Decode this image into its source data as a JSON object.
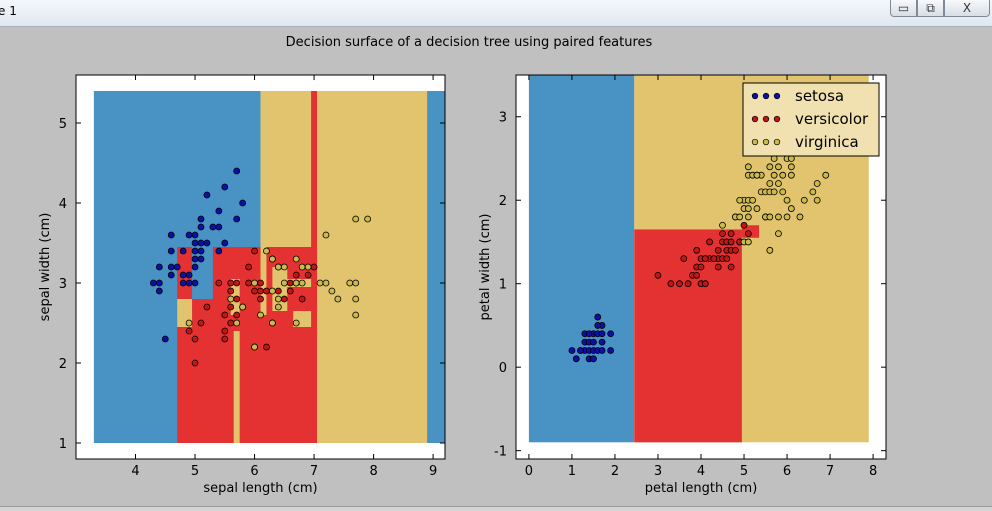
{
  "window": {
    "title": "e 1",
    "min_glyph": "▭",
    "max_glyph": "⧉",
    "close_glyph": "X"
  },
  "figure_title": "Decision surface of a decision tree using paired features",
  "colors": {
    "setosa_region": "#4892c4",
    "versicolor_region": "#e43232",
    "virginica_region": "#e3c46e",
    "setosa_point": "#0d10a8",
    "versicolor_point": "#c11616",
    "virginica_point": "#c9ba4a",
    "background": "#c0c0c0"
  },
  "chart_data": [
    {
      "type": "scatter",
      "title": "",
      "xlabel": "sepal length (cm)",
      "ylabel": "sepal width (cm)",
      "xlim": [
        3.0,
        9.2
      ],
      "ylim": [
        0.8,
        5.6
      ],
      "xticks": [
        4,
        5,
        6,
        7,
        8,
        9
      ],
      "yticks": [
        1,
        2,
        3,
        4,
        5
      ],
      "grid": false,
      "legend": null,
      "regions": [
        {
          "class": "setosa",
          "x0": 3.3,
          "x1": 9.9,
          "y0": 1.0,
          "y1": 5.4
        },
        {
          "class": "virginica",
          "x0": 6.1,
          "x1": 8.9,
          "y0": 1.0,
          "y1": 5.4
        },
        {
          "class": "versicolor",
          "x0": 4.7,
          "x1": 7.05,
          "y0": 1.0,
          "y1": 3.45
        },
        {
          "class": "virginica",
          "x0": 4.7,
          "x1": 4.95,
          "y0": 2.45,
          "y1": 2.8
        },
        {
          "class": "setosa",
          "x0": 4.95,
          "x1": 5.3,
          "y0": 2.8,
          "y1": 3.45
        },
        {
          "class": "virginica",
          "x0": 5.65,
          "x1": 5.75,
          "y0": 1.0,
          "y1": 2.4
        },
        {
          "class": "virginica",
          "x0": 5.6,
          "x1": 5.75,
          "y0": 2.6,
          "y1": 3.05
        },
        {
          "class": "virginica",
          "x0": 6.1,
          "x1": 6.2,
          "y0": 2.6,
          "y1": 3.45
        },
        {
          "class": "virginica",
          "x0": 6.3,
          "x1": 6.55,
          "y0": 2.65,
          "y1": 3.2
        },
        {
          "class": "virginica",
          "x0": 6.55,
          "x1": 6.95,
          "y0": 2.95,
          "y1": 3.05
        },
        {
          "class": "virginica",
          "x0": 6.65,
          "x1": 6.95,
          "y0": 2.45,
          "y1": 2.65
        },
        {
          "class": "versicolor",
          "x0": 6.95,
          "x1": 7.05,
          "y0": 3.45,
          "y1": 5.4
        }
      ],
      "series": [
        {
          "name": "setosa",
          "points": [
            [
              4.3,
              3.0
            ],
            [
              4.4,
              2.9
            ],
            [
              4.4,
              3.0
            ],
            [
              4.4,
              3.2
            ],
            [
              4.5,
              2.3
            ],
            [
              4.6,
              3.1
            ],
            [
              4.6,
              3.4
            ],
            [
              4.6,
              3.6
            ],
            [
              4.6,
              3.2
            ],
            [
              4.7,
              3.2
            ],
            [
              4.8,
              3.0
            ],
            [
              4.8,
              3.4
            ],
            [
              4.8,
              3.1
            ],
            [
              4.9,
              3.0
            ],
            [
              4.9,
              3.1
            ],
            [
              4.9,
              3.6
            ],
            [
              5.0,
              3.6
            ],
            [
              5.0,
              3.4
            ],
            [
              5.0,
              3.0
            ],
            [
              5.0,
              3.3
            ],
            [
              5.0,
              3.5
            ],
            [
              5.0,
              3.2
            ],
            [
              5.1,
              3.5
            ],
            [
              5.1,
              3.8
            ],
            [
              5.1,
              3.7
            ],
            [
              5.1,
              3.3
            ],
            [
              5.1,
              3.4
            ],
            [
              5.2,
              3.5
            ],
            [
              5.2,
              4.1
            ],
            [
              5.3,
              3.7
            ],
            [
              5.4,
              3.9
            ],
            [
              5.4,
              3.7
            ],
            [
              5.4,
              3.4
            ],
            [
              5.5,
              4.2
            ],
            [
              5.5,
              3.5
            ],
            [
              5.7,
              4.4
            ],
            [
              5.7,
              3.8
            ],
            [
              5.8,
              4.0
            ]
          ]
        },
        {
          "name": "versicolor",
          "points": [
            [
              4.9,
              2.4
            ],
            [
              5.0,
              2.0
            ],
            [
              5.0,
              2.3
            ],
            [
              5.1,
              2.5
            ],
            [
              5.2,
              2.7
            ],
            [
              5.4,
              3.0
            ],
            [
              5.5,
              2.3
            ],
            [
              5.5,
              2.4
            ],
            [
              5.5,
              2.6
            ],
            [
              5.6,
              2.9
            ],
            [
              5.6,
              3.0
            ],
            [
              5.6,
              2.5
            ],
            [
              5.6,
              2.7
            ],
            [
              5.7,
              2.8
            ],
            [
              5.7,
              2.6
            ],
            [
              5.7,
              3.0
            ],
            [
              5.8,
              2.7
            ],
            [
              5.9,
              3.0
            ],
            [
              5.9,
              3.2
            ],
            [
              6.0,
              2.2
            ],
            [
              6.0,
              2.9
            ],
            [
              6.0,
              3.4
            ],
            [
              6.1,
              2.9
            ],
            [
              6.1,
              2.8
            ],
            [
              6.1,
              3.0
            ],
            [
              6.2,
              2.2
            ],
            [
              6.2,
              2.9
            ],
            [
              6.3,
              3.3
            ],
            [
              6.3,
              2.5
            ],
            [
              6.4,
              3.2
            ],
            [
              6.4,
              2.9
            ],
            [
              6.5,
              2.8
            ],
            [
              6.6,
              2.9
            ],
            [
              6.6,
              3.0
            ],
            [
              6.7,
              3.1
            ],
            [
              6.7,
              3.0
            ],
            [
              6.8,
              2.8
            ],
            [
              6.9,
              3.1
            ],
            [
              7.0,
              3.2
            ]
          ]
        },
        {
          "name": "virginica",
          "points": [
            [
              4.9,
              2.5
            ],
            [
              5.6,
              2.8
            ],
            [
              5.7,
              2.5
            ],
            [
              5.8,
              2.7
            ],
            [
              6.0,
              2.2
            ],
            [
              6.0,
              3.0
            ],
            [
              6.1,
              2.6
            ],
            [
              6.2,
              3.4
            ],
            [
              6.3,
              3.3
            ],
            [
              6.3,
              2.9
            ],
            [
              6.3,
              2.5
            ],
            [
              6.4,
              2.7
            ],
            [
              6.4,
              3.2
            ],
            [
              6.4,
              2.8
            ],
            [
              6.5,
              3.0
            ],
            [
              6.5,
              3.2
            ],
            [
              6.7,
              2.5
            ],
            [
              6.7,
              3.3
            ],
            [
              6.7,
              3.0
            ],
            [
              6.8,
              3.0
            ],
            [
              6.8,
              3.2
            ],
            [
              6.9,
              3.2
            ],
            [
              7.1,
              3.0
            ],
            [
              7.2,
              3.6
            ],
            [
              7.2,
              3.0
            ],
            [
              7.3,
              2.9
            ],
            [
              7.4,
              2.8
            ],
            [
              7.6,
              3.0
            ],
            [
              7.7,
              3.8
            ],
            [
              7.7,
              2.6
            ],
            [
              7.7,
              2.8
            ],
            [
              7.7,
              3.0
            ],
            [
              7.9,
              3.8
            ]
          ]
        }
      ]
    },
    {
      "type": "scatter",
      "title": "",
      "xlabel": "petal length (cm)",
      "ylabel": "petal width (cm)",
      "xlim": [
        -0.3,
        8.3
      ],
      "ylim": [
        -1.1,
        3.5
      ],
      "xticks": [
        0,
        1,
        2,
        3,
        4,
        5,
        6,
        7,
        8
      ],
      "yticks": [
        -1,
        0,
        1,
        2,
        3
      ],
      "grid": false,
      "legend": {
        "position": "upper right",
        "entries": [
          "setosa",
          "versicolor",
          "virginica"
        ]
      },
      "regions": [
        {
          "class": "setosa",
          "x0": 0.0,
          "x1": 2.45,
          "y0": -0.9,
          "y1": 3.5
        },
        {
          "class": "virginica",
          "x0": 2.45,
          "x1": 7.9,
          "y0": -0.9,
          "y1": 3.5
        },
        {
          "class": "versicolor",
          "x0": 2.45,
          "x1": 4.95,
          "y0": -0.9,
          "y1": 1.65
        },
        {
          "class": "versicolor",
          "x0": 4.95,
          "x1": 5.35,
          "y0": 1.55,
          "y1": 1.7
        }
      ],
      "series": [
        {
          "name": "setosa",
          "points": [
            [
              1.0,
              0.2
            ],
            [
              1.1,
              0.1
            ],
            [
              1.2,
              0.2
            ],
            [
              1.3,
              0.2
            ],
            [
              1.3,
              0.3
            ],
            [
              1.3,
              0.4
            ],
            [
              1.4,
              0.2
            ],
            [
              1.4,
              0.1
            ],
            [
              1.4,
              0.3
            ],
            [
              1.5,
              0.2
            ],
            [
              1.5,
              0.4
            ],
            [
              1.5,
              0.1
            ],
            [
              1.5,
              0.3
            ],
            [
              1.6,
              0.2
            ],
            [
              1.6,
              0.6
            ],
            [
              1.6,
              0.4
            ],
            [
              1.7,
              0.2
            ],
            [
              1.7,
              0.5
            ],
            [
              1.7,
              0.3
            ],
            [
              1.7,
              0.4
            ],
            [
              1.9,
              0.2
            ],
            [
              1.9,
              0.4
            ],
            [
              1.2,
              0.2
            ],
            [
              1.4,
              0.4
            ],
            [
              1.6,
              0.5
            ]
          ]
        },
        {
          "name": "versicolor",
          "points": [
            [
              3.0,
              1.1
            ],
            [
              3.3,
              1.0
            ],
            [
              3.5,
              1.0
            ],
            [
              3.6,
              1.3
            ],
            [
              3.7,
              1.0
            ],
            [
              3.8,
              1.1
            ],
            [
              3.9,
              1.4
            ],
            [
              3.9,
              1.2
            ],
            [
              3.9,
              1.1
            ],
            [
              4.0,
              1.3
            ],
            [
              4.0,
              1.0
            ],
            [
              4.0,
              1.2
            ],
            [
              4.1,
              1.3
            ],
            [
              4.1,
              1.0
            ],
            [
              4.2,
              1.3
            ],
            [
              4.2,
              1.5
            ],
            [
              4.3,
              1.3
            ],
            [
              4.4,
              1.4
            ],
            [
              4.4,
              1.3
            ],
            [
              4.4,
              1.2
            ],
            [
              4.5,
              1.5
            ],
            [
              4.5,
              1.3
            ],
            [
              4.6,
              1.3
            ],
            [
              4.6,
              1.4
            ],
            [
              4.6,
              1.5
            ],
            [
              4.7,
              1.4
            ],
            [
              4.7,
              1.2
            ],
            [
              4.7,
              1.5
            ],
            [
              4.7,
              1.6
            ],
            [
              4.8,
              1.4
            ],
            [
              4.8,
              1.8
            ],
            [
              4.9,
              1.5
            ],
            [
              5.0,
              1.7
            ],
            [
              5.1,
              1.6
            ],
            [
              4.5,
              1.6
            ],
            [
              4.9,
              1.5
            ],
            [
              4.3,
              1.3
            ],
            [
              4.1,
              1.3
            ]
          ]
        },
        {
          "name": "virginica",
          "points": [
            [
              4.5,
              1.7
            ],
            [
              4.8,
              1.8
            ],
            [
              4.9,
              1.8
            ],
            [
              5.0,
              1.5
            ],
            [
              5.0,
              2.0
            ],
            [
              5.0,
              1.9
            ],
            [
              5.1,
              2.4
            ],
            [
              5.1,
              2.3
            ],
            [
              5.1,
              1.9
            ],
            [
              5.1,
              1.5
            ],
            [
              5.1,
              2.0
            ],
            [
              5.1,
              1.8
            ],
            [
              5.2,
              2.3
            ],
            [
              5.2,
              2.0
            ],
            [
              5.3,
              2.3
            ],
            [
              5.3,
              1.9
            ],
            [
              5.4,
              2.3
            ],
            [
              5.4,
              2.1
            ],
            [
              5.5,
              2.1
            ],
            [
              5.5,
              1.8
            ],
            [
              5.5,
              1.8
            ],
            [
              5.6,
              2.4
            ],
            [
              5.6,
              2.2
            ],
            [
              5.6,
              1.4
            ],
            [
              5.6,
              2.1
            ],
            [
              5.6,
              1.8
            ],
            [
              5.7,
              2.3
            ],
            [
              5.7,
              2.1
            ],
            [
              5.7,
              2.5
            ],
            [
              5.8,
              2.2
            ],
            [
              5.8,
              1.8
            ],
            [
              5.8,
              1.6
            ],
            [
              5.9,
              2.3
            ],
            [
              5.9,
              2.1
            ],
            [
              6.0,
              2.5
            ],
            [
              6.0,
              1.8
            ],
            [
              6.1,
              2.3
            ],
            [
              6.1,
              1.9
            ],
            [
              6.1,
              2.5
            ],
            [
              6.3,
              1.8
            ],
            [
              6.4,
              2.0
            ],
            [
              6.6,
              2.1
            ],
            [
              6.7,
              2.2
            ],
            [
              6.7,
              2.0
            ],
            [
              6.9,
              2.3
            ],
            [
              6.1,
              2.4
            ],
            [
              5.8,
              2.4
            ],
            [
              4.9,
              2.0
            ],
            [
              5.3,
              2.3
            ],
            [
              6.0,
              2.0
            ]
          ]
        }
      ]
    }
  ]
}
